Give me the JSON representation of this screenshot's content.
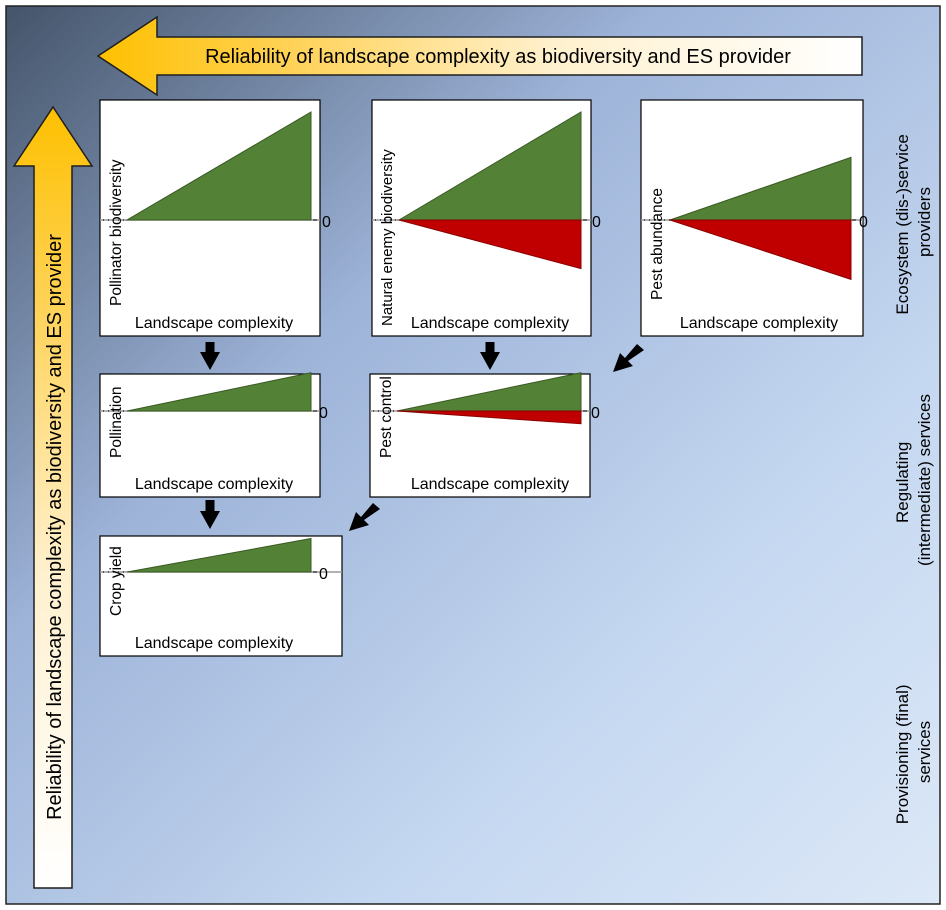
{
  "top_arrow_label": "Reliability of landscape complexity as biodiversity and ES provider",
  "left_arrow_label": "Reliability of landscape complexity as biodiversity and ES provider",
  "row_labels": {
    "row1": [
      "Ecosystem (dis-)service",
      "providers"
    ],
    "row2": [
      "Regulating",
      "(intermediate) services"
    ],
    "row3": [
      "Provisioning (final)",
      "services"
    ]
  },
  "zero_label": "0",
  "panels": {
    "pollinator_biodiversity": {
      "ylabel": "Pollinator biodiversity",
      "xlabel": "Landscape complexity",
      "positive": 1.0,
      "negative": 0
    },
    "natural_enemy_biodiversity": {
      "ylabel": "Natural enemy biodiversity",
      "xlabel": "Landscape complexity",
      "positive": 1.0,
      "negative": 0.45
    },
    "pest_abundance": {
      "ylabel": "Pest abundance",
      "xlabel": "Landscape complexity",
      "positive": 0.58,
      "negative": 0.55
    },
    "pollination": {
      "ylabel": "Pollination",
      "xlabel": "Landscape complexity",
      "positive": 0.66,
      "negative": 0
    },
    "pest_control": {
      "ylabel": "Pest control",
      "xlabel": "Landscape complexity",
      "positive": 0.66,
      "negative": 0.22
    },
    "crop_yield": {
      "ylabel": "Crop yield",
      "xlabel": "Landscape complexity",
      "positive": 0.31,
      "negative": 0
    }
  },
  "colors": {
    "positive_fill": "#538135",
    "negative_fill": "#c00000",
    "arrow_fill": "#fec000",
    "panel_background": "#ffffff",
    "flow_arrow": "#000000"
  }
}
